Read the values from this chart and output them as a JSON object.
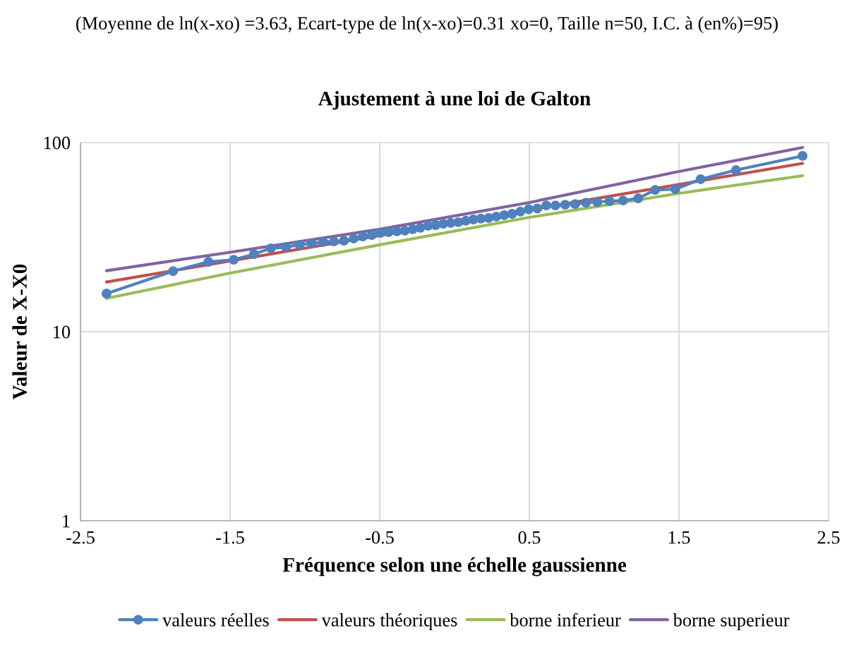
{
  "chart_data": {
    "type": "line",
    "title": "Ajustement à une loi de Galton",
    "xlabel": "Fréquence selon une échelle gaussienne",
    "ylabel": "Valeur de X-X0",
    "annotations": [
      "(Moyenne de ln(x-xo) =3.63, Ecart-type de ln(x-xo)=0.31 xo=0, Taille n=50, I.C. à (en%)=95)"
    ],
    "x": [
      -2.326,
      -1.881,
      -1.645,
      -1.476,
      -1.341,
      -1.227,
      -1.126,
      -1.036,
      -0.954,
      -0.878,
      -0.806,
      -0.739,
      -0.674,
      -0.613,
      -0.553,
      -0.496,
      -0.44,
      -0.385,
      -0.332,
      -0.279,
      -0.228,
      -0.176,
      -0.126,
      -0.075,
      -0.025,
      0.025,
      0.075,
      0.126,
      0.176,
      0.228,
      0.279,
      0.332,
      0.385,
      0.44,
      0.496,
      0.553,
      0.613,
      0.674,
      0.739,
      0.806,
      0.878,
      0.954,
      1.036,
      1.126,
      1.227,
      1.341,
      1.476,
      1.645,
      1.881,
      2.326
    ],
    "series": [
      {
        "name": "valeurs réelles",
        "color": "#4f81bd",
        "marker": "circle",
        "values": [
          15.9,
          20.9,
          23.4,
          24.0,
          25.7,
          27.6,
          28.0,
          28.8,
          29.3,
          29.8,
          30.0,
          30.3,
          31.1,
          31.9,
          32.4,
          33.3,
          33.6,
          33.9,
          34.2,
          34.8,
          35.4,
          36.3,
          36.6,
          37.2,
          37.6,
          37.9,
          38.6,
          39.2,
          39.6,
          39.9,
          40.6,
          41.3,
          42.0,
          43.1,
          44.4,
          44.8,
          46.5,
          46.5,
          46.9,
          47.3,
          48.1,
          48.5,
          49.0,
          49.4,
          50.7,
          56.2,
          56.7,
          64.0,
          71.5,
          85.0
        ]
      },
      {
        "name": "valeurs théoriques",
        "color": "#c0504d",
        "marker": "none",
        "x": [
          -2.326,
          2.326
        ],
        "values": [
          18.3,
          77.6
        ]
      },
      {
        "name": "borne inferieur",
        "color": "#9bbb59",
        "marker": "none",
        "x": [
          -2.326,
          -1.5,
          -0.5,
          0.5,
          1.5,
          2.326
        ],
        "values": [
          15.0,
          20.4,
          28.8,
          40.2,
          53.9,
          66.8
        ]
      },
      {
        "name": "borne superieur",
        "color": "#8064a2",
        "marker": "none",
        "x": [
          -2.326,
          -1.5,
          -0.5,
          0.5,
          1.5,
          2.326
        ],
        "values": [
          21.0,
          26.3,
          34.8,
          48.2,
          70.3,
          94.2
        ]
      }
    ],
    "log": "y",
    "xlim": [
      -2.5,
      2.5
    ],
    "xticks": [
      -2.5,
      -1.5,
      -0.5,
      0.5,
      1.5,
      2.5
    ],
    "ylim": [
      1,
      100
    ],
    "yticks": [
      1,
      10,
      100
    ],
    "grid": true,
    "legend": "bottom"
  }
}
